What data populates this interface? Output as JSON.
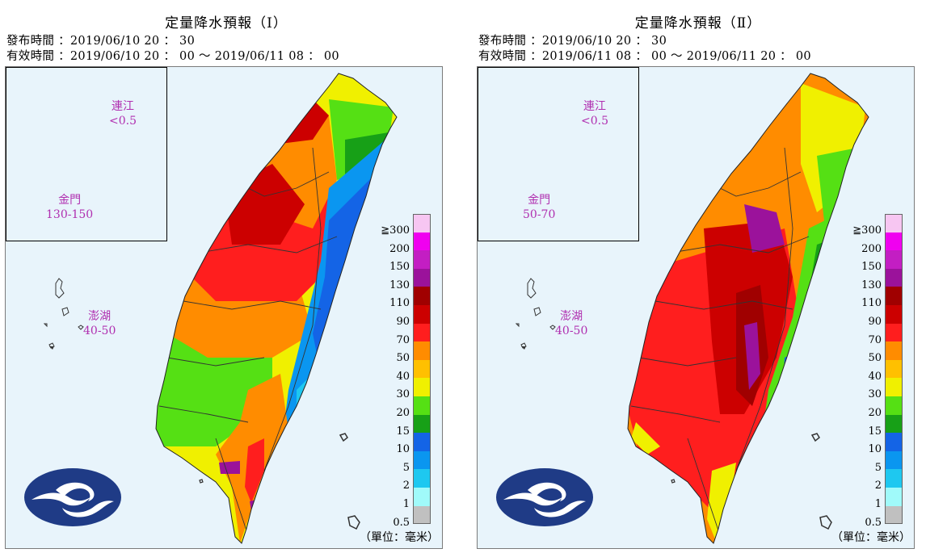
{
  "panels": [
    {
      "title": "定量降水預報（Ⅰ）",
      "issue_line": "發布時間 ：2019/06/10 20 ： 30",
      "valid_line": "有效時間 ：2019/06/10 20 ： 00 〜 2019/06/11 08 ： 00",
      "matsu": {
        "name": "連江",
        "value": "<0.5"
      },
      "kinmen": {
        "name": "金門",
        "value": "130-150"
      },
      "penghu": {
        "name": "澎湖",
        "value": "40-50"
      }
    },
    {
      "title": "定量降水預報（Ⅱ）",
      "issue_line": "發布時間 ：2019/06/10 20 ： 30",
      "valid_line": "有效時間 ：2019/06/11 08 ： 00 〜 2019/06/11 20 ： 00",
      "matsu": {
        "name": "連江",
        "value": "<0.5"
      },
      "kinmen": {
        "name": "金門",
        "value": "50-70"
      },
      "penghu": {
        "name": "澎湖",
        "value": "40-50"
      }
    }
  ],
  "legend": {
    "ticks": [
      "≧300",
      "200",
      "150",
      "130",
      "110",
      "90",
      "70",
      "50",
      "40",
      "30",
      "20",
      "15",
      "10",
      "5",
      "2",
      "1",
      "0.5"
    ],
    "colors": [
      "#f7c6f2",
      "#f000f0",
      "#c31ec3",
      "#9b129b",
      "#a00000",
      "#cc0000",
      "#ff1e1e",
      "#ff8c00",
      "#ffc000",
      "#f0f000",
      "#55e014",
      "#17a017",
      "#1464e6",
      "#0a96f0",
      "#1ec8f0",
      "#a0fafa",
      "#c0c0c0"
    ]
  },
  "unit_label": "（單位：毫米）",
  "colors": {
    "sea": "#e8f4fb",
    "label": "#b02fb0",
    "logo_bg": "#1f3b86"
  }
}
